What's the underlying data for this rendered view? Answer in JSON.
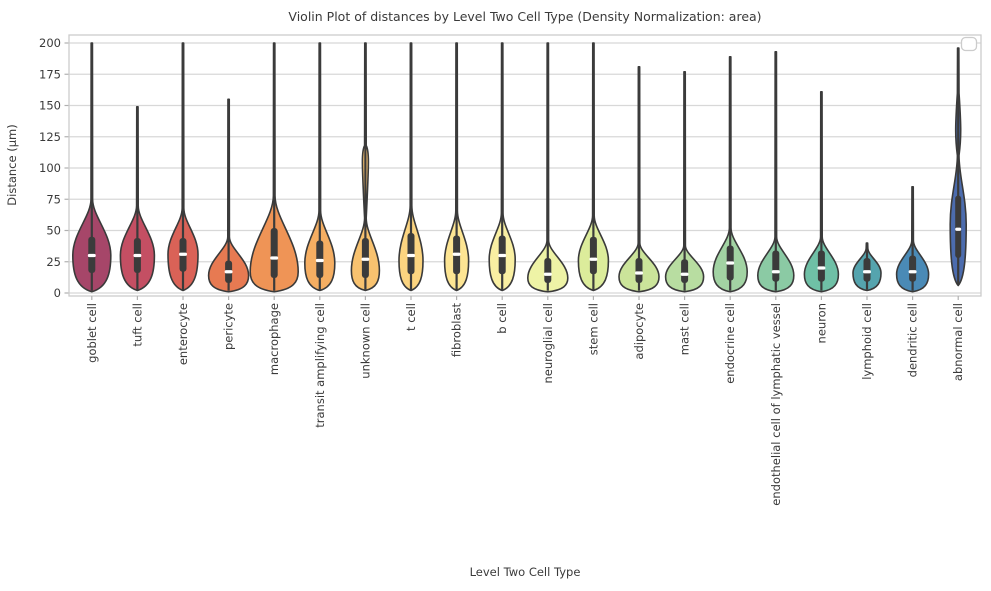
{
  "title": "Violin Plot of distances by Level Two Cell Type (Density Normalization: area)",
  "xlabel": "Level Two Cell Type",
  "ylabel": "Distance (μm)",
  "legend": {
    "present": true,
    "entries": []
  },
  "style": {
    "background": "#ffffff",
    "grid_color": "#d8d8d8",
    "spine_color": "#cccccc",
    "tick_color": "#b0b0b0",
    "text_color": "#3a3a3a",
    "violin_edge_color": "#3a3a3a",
    "inner_box_color": "#3b3b3b",
    "median_color": "#ffffff"
  },
  "chart_data": {
    "type": "violin",
    "title": "Violin Plot of distances by Level Two Cell Type (Density Normalization: area)",
    "xlabel": "Level Two Cell Type",
    "ylabel": "Distance (μm)",
    "ylim": [
      0,
      200
    ],
    "yticks": [
      0,
      25,
      50,
      75,
      100,
      125,
      150,
      175,
      200
    ],
    "grid": "horizontal",
    "density_normalization": "area",
    "categories": [
      "goblet cell",
      "tuft cell",
      "enterocyte",
      "pericyte",
      "macrophage",
      "transit amplifying cell",
      "unknown cell",
      "t cell",
      "fibroblast",
      "b cell",
      "neuroglial cell",
      "stem cell",
      "adipocyte",
      "mast cell",
      "endocrine cell",
      "endothelial cell of lymphatic vessel",
      "neuron",
      "lymphoid cell",
      "dendritic cell",
      "abnormal cell"
    ],
    "series": [
      {
        "label": "goblet cell",
        "color": "#a64669",
        "min": 1,
        "q1": 16,
        "median": 30,
        "q3": 45,
        "max": 200,
        "widest_at": 30,
        "body_top": 75,
        "hw": 19
      },
      {
        "label": "tuft cell",
        "color": "#c44f63",
        "min": 2,
        "q1": 16,
        "median": 30,
        "q3": 44,
        "max": 149,
        "widest_at": 30,
        "body_top": 70,
        "hw": 17
      },
      {
        "label": "enterocyte",
        "color": "#da6257",
        "min": 2,
        "q1": 17,
        "median": 31,
        "q3": 44,
        "max": 200,
        "widest_at": 31,
        "body_top": 68,
        "hw": 15
      },
      {
        "label": "pericyte",
        "color": "#e77a52",
        "min": 1,
        "q1": 8,
        "median": 17,
        "q3": 26,
        "max": 155,
        "widest_at": 14,
        "body_top": 45,
        "hw": 20
      },
      {
        "label": "macrophage",
        "color": "#ef9456",
        "min": 1,
        "q1": 12,
        "median": 28,
        "q3": 52,
        "max": 200,
        "widest_at": 17,
        "body_top": 78,
        "hw": 24
      },
      {
        "label": "transit amplifying cell",
        "color": "#f5ae62",
        "min": 2,
        "q1": 12,
        "median": 26,
        "q3": 42,
        "max": 200,
        "widest_at": 24,
        "body_top": 66,
        "hw": 15
      },
      {
        "label": "unknown cell",
        "color": "#f8c26f",
        "min": 2,
        "q1": 12,
        "median": 27,
        "q3": 44,
        "max": 200,
        "widest_at": 18,
        "body_top": 60,
        "hw": 14,
        "bump": {
          "at": 105,
          "hw": 3,
          "top": 118
        }
      },
      {
        "label": "t cell",
        "color": "#fbd480",
        "min": 2,
        "q1": 15,
        "median": 30,
        "q3": 48,
        "max": 200,
        "widest_at": 26,
        "body_top": 70,
        "hw": 12
      },
      {
        "label": "fibroblast",
        "color": "#fde593",
        "min": 2,
        "q1": 15,
        "median": 31,
        "q3": 46,
        "max": 200,
        "widest_at": 26,
        "body_top": 66,
        "hw": 12
      },
      {
        "label": "b cell",
        "color": "#f9efa2",
        "min": 2,
        "q1": 15,
        "median": 30,
        "q3": 46,
        "max": 200,
        "widest_at": 27,
        "body_top": 64,
        "hw": 13
      },
      {
        "label": "neuroglial cell",
        "color": "#eef3a6",
        "min": 1,
        "q1": 8,
        "median": 15,
        "q3": 28,
        "max": 200,
        "widest_at": 12,
        "body_top": 42,
        "hw": 20
      },
      {
        "label": "stem cell",
        "color": "#dcec9b",
        "min": 2,
        "q1": 15,
        "median": 27,
        "q3": 45,
        "max": 200,
        "widest_at": 26,
        "body_top": 62,
        "hw": 15
      },
      {
        "label": "adipocyte",
        "color": "#cbe49a",
        "min": 1,
        "q1": 8,
        "median": 16,
        "q3": 28,
        "max": 181,
        "widest_at": 13,
        "body_top": 40,
        "hw": 20
      },
      {
        "label": "mast cell",
        "color": "#b8dda1",
        "min": 1,
        "q1": 8,
        "median": 15,
        "q3": 27,
        "max": 177,
        "widest_at": 13,
        "body_top": 38,
        "hw": 19
      },
      {
        "label": "endocrine cell",
        "color": "#a2d3a3",
        "min": 1,
        "q1": 10,
        "median": 24,
        "q3": 38,
        "max": 189,
        "widest_at": 17,
        "body_top": 52,
        "hw": 17
      },
      {
        "label": "endothelial cell of lymphatic vessel",
        "color": "#8bcaa4",
        "min": 1,
        "q1": 9,
        "median": 17,
        "q3": 34,
        "max": 193,
        "widest_at": 14,
        "body_top": 45,
        "hw": 18
      },
      {
        "label": "neuron",
        "color": "#6fc0a6",
        "min": 1,
        "q1": 9,
        "median": 20,
        "q3": 34,
        "max": 161,
        "widest_at": 15,
        "body_top": 45,
        "hw": 17
      },
      {
        "label": "lymphoid cell",
        "color": "#55a4ae",
        "min": 2,
        "q1": 9,
        "median": 17,
        "q3": 28,
        "max": 40,
        "widest_at": 16,
        "body_top": 36,
        "hw": 14
      },
      {
        "label": "dendritic cell",
        "color": "#4a8ab6",
        "min": 1,
        "q1": 9,
        "median": 17,
        "q3": 30,
        "max": 85,
        "widest_at": 15,
        "body_top": 42,
        "hw": 16
      },
      {
        "label": "abnormal cell",
        "color": "#4c6cae",
        "min": 6,
        "q1": 28,
        "median": 51,
        "q3": 78,
        "max": 196,
        "widest_at": 55,
        "body_top": 110,
        "hw": 8,
        "bump": {
          "at": 130,
          "hw": 2.5,
          "top": 160
        }
      }
    ]
  }
}
